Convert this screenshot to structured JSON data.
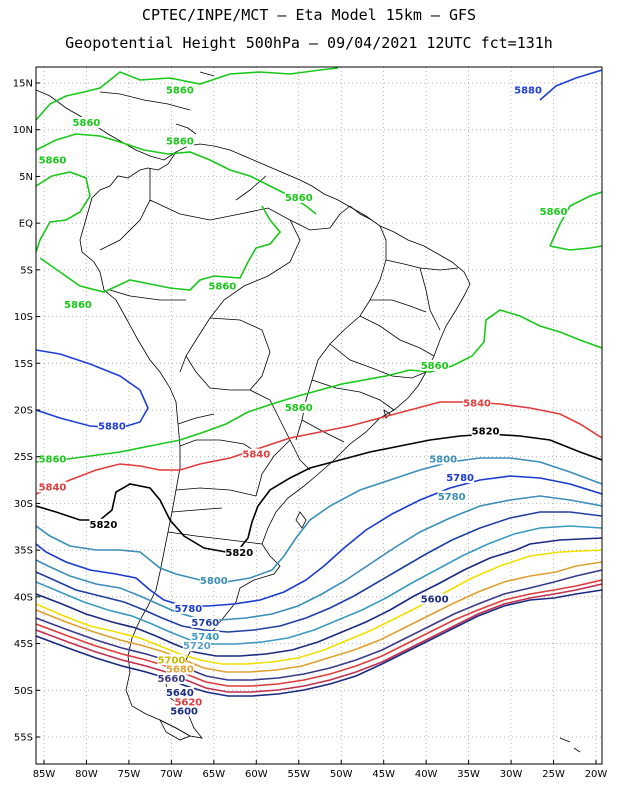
{
  "header": {
    "line1": "CPTEC/INPE/MCT –  Eta Model 15km – GFS",
    "line2": "Geopotential Height 500hPa – 09/04/2021 12UTC fct=131h"
  },
  "chart_data": {
    "type": "contour_map",
    "title": "Geopotential Height 500hPa – 09/04/2021 12UTC fct=131h",
    "lon_range": [
      -86,
      -20
    ],
    "lat_range": [
      -58,
      16
    ],
    "lat_ticks": [
      "15N",
      "10N",
      "5N",
      "EQ",
      "5S",
      "10S",
      "15S",
      "20S",
      "25S",
      "30S",
      "35S",
      "40S",
      "45S",
      "50S",
      "55S"
    ],
    "lon_ticks": [
      "85W",
      "80W",
      "75W",
      "70W",
      "65W",
      "60W",
      "55W",
      "50W",
      "45W",
      "40W",
      "35W",
      "30W",
      "25W",
      "20W"
    ],
    "contour_levels": [
      5580,
      5600,
      5620,
      5640,
      5660,
      5680,
      5700,
      5720,
      5740,
      5760,
      5780,
      5800,
      5820,
      5840,
      5860,
      5880
    ],
    "level_colors": {
      "5880": "#1f3fd6",
      "5860": "#19c819",
      "5840": "#e03c3c",
      "5820": "#000000",
      "5800": "#3a8eb8",
      "5780": "#1a3ad0",
      "5760": "#1f3fa0",
      "5740": "#3a9ac0",
      "5720": "#5aa0c8",
      "5700": "#f0e000",
      "5680": "#e0a030",
      "5660": "#c07030",
      "5640": "#e03c3c",
      "5620": "#c03050",
      "5600": "#1a2a80"
    },
    "labels": [
      {
        "text": "5880",
        "lon": -28,
        "lat": 14,
        "color": "#1f3fd6"
      },
      {
        "text": "5860",
        "lon": -69,
        "lat": 14,
        "color": "#19c819"
      },
      {
        "text": "5860",
        "lon": -80,
        "lat": 10.5,
        "color": "#19c819"
      },
      {
        "text": "5860",
        "lon": -69,
        "lat": 8.5,
        "color": "#19c819"
      },
      {
        "text": "5860",
        "lon": -84,
        "lat": 6.5,
        "color": "#19c819"
      },
      {
        "text": "5860",
        "lon": -55,
        "lat": 2.5,
        "color": "#19c819"
      },
      {
        "text": "5860",
        "lon": -25,
        "lat": 1,
        "color": "#19c819"
      },
      {
        "text": "5860",
        "lon": -64,
        "lat": -7,
        "color": "#19c819"
      },
      {
        "text": "5860",
        "lon": -81,
        "lat": -9,
        "color": "#19c819"
      },
      {
        "text": "5860",
        "lon": -39,
        "lat": -15.5,
        "color": "#19c819"
      },
      {
        "text": "5860",
        "lon": -55,
        "lat": -20,
        "color": "#19c819"
      },
      {
        "text": "5860",
        "lon": -84,
        "lat": -25.5,
        "color": "#19c819"
      },
      {
        "text": "5880",
        "lon": -77,
        "lat": -22,
        "color": "#1f3fd6"
      },
      {
        "text": "5840",
        "lon": -34,
        "lat": -19.5,
        "color": "#e03c3c"
      },
      {
        "text": "5840",
        "lon": -60,
        "lat": -25,
        "color": "#e03c3c"
      },
      {
        "text": "5840",
        "lon": -84,
        "lat": -28.5,
        "color": "#e03c3c"
      },
      {
        "text": "5820",
        "lon": -33,
        "lat": -22.5,
        "color": "#000000"
      },
      {
        "text": "5820",
        "lon": -78,
        "lat": -32.5,
        "color": "#000000"
      },
      {
        "text": "5820",
        "lon": -62,
        "lat": -35.5,
        "color": "#000000"
      },
      {
        "text": "5800",
        "lon": -38,
        "lat": -25.5,
        "color": "#3a8eb8"
      },
      {
        "text": "5800",
        "lon": -65,
        "lat": -38.5,
        "color": "#3a8eb8"
      },
      {
        "text": "5780",
        "lon": -36,
        "lat": -27.5,
        "color": "#1a3ad0"
      },
      {
        "text": "5780",
        "lon": -37,
        "lat": -29.5,
        "color": "#3a8eb8"
      },
      {
        "text": "5780",
        "lon": -68,
        "lat": -41.5,
        "color": "#1a3ad0"
      },
      {
        "text": "5760",
        "lon": -66,
        "lat": -43,
        "color": "#1f3fa0"
      },
      {
        "text": "5740",
        "lon": -66,
        "lat": -44.5,
        "color": "#3a9ac0"
      },
      {
        "text": "5720",
        "lon": -67,
        "lat": -45.5,
        "color": "#5aa0c8"
      },
      {
        "text": "5700",
        "lon": -70,
        "lat": -47,
        "color": "#c8b800"
      },
      {
        "text": "5680",
        "lon": -69,
        "lat": -48,
        "color": "#e0a030"
      },
      {
        "text": "5660",
        "lon": -70,
        "lat": -49,
        "color": "#3a3a8a"
      },
      {
        "text": "5640",
        "lon": -69,
        "lat": -50.5,
        "color": "#1a2a80"
      },
      {
        "text": "5620",
        "lon": -68,
        "lat": -51.5,
        "color": "#e03c3c"
      },
      {
        "text": "5600",
        "lon": -68.5,
        "lat": -52.5,
        "color": "#1a2a80"
      },
      {
        "text": "5600",
        "lon": -39,
        "lat": -40.5,
        "color": "#1a2a80"
      }
    ]
  }
}
